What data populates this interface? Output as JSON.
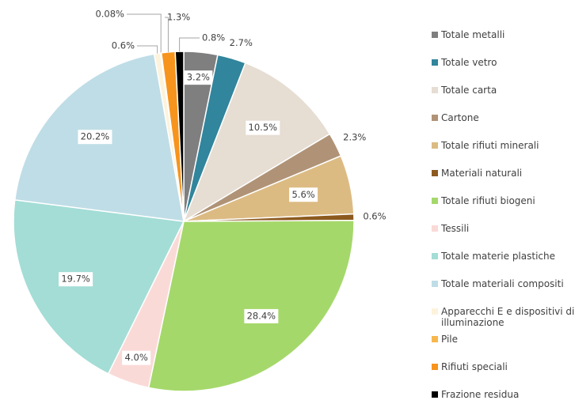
{
  "chart_data": {
    "type": "pie",
    "categories": [
      "Totale metalli",
      "Totale vetro",
      "Totale carta",
      "Cartone",
      "Totale rifiuti minerali",
      "Materiali naturali",
      "Totale rifiuti biogeni",
      "Tessili",
      "Totale materie plastiche",
      "Totale materiali compositi",
      "Apparecchi E e dispositivi di illuminazione",
      "Pile",
      "Rifiuti speciali",
      "Frazione residua"
    ],
    "values": [
      3.2,
      2.7,
      10.5,
      2.3,
      5.6,
      0.6,
      28.4,
      4.0,
      19.7,
      20.2,
      0.6,
      0.08,
      1.3,
      0.8
    ],
    "value_labels": [
      "3.2%",
      "2.7%",
      "10.5%",
      "2.3%",
      "5.6%",
      "0.6%",
      "28.4%",
      "4.0%",
      "19.7%",
      "20.2%",
      "0.6%",
      "0.08%",
      "1.3%",
      "0.8%"
    ],
    "colors": [
      "#7f7f7f",
      "#31859c",
      "#e6ddd3",
      "#b09377",
      "#dcbb83",
      "#8c5a1f",
      "#a5d86b",
      "#fadad7",
      "#a3ddd6",
      "#bfdde6",
      "#fdf3dc",
      "#f7b74d",
      "#f7941d",
      "#000000"
    ],
    "legend": "right"
  }
}
